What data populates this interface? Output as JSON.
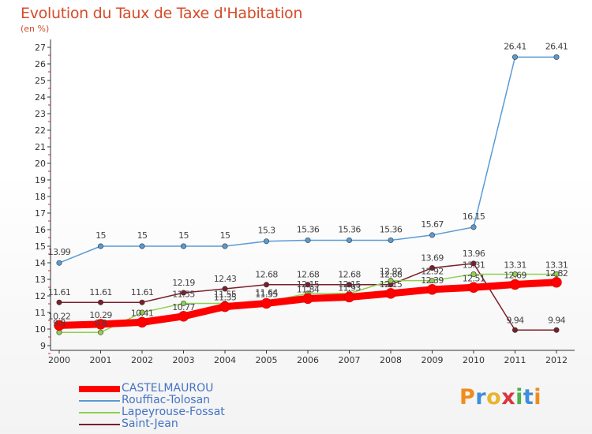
{
  "header": {
    "title": "Evolution du Taux de Taxe d'Habitation",
    "subtitle": "(en %)"
  },
  "logo": {
    "text": "Proxiti",
    "colors": [
      "#ef8c1e",
      "#3f8fd8",
      "#e8b52c",
      "#d9363e",
      "#4ab34a",
      "#3f8fd8",
      "#ef8c1e"
    ]
  },
  "chart_data": {
    "type": "line",
    "title": "Evolution du Taux de Taxe d'Habitation",
    "ylabel": "(en %)",
    "x": [
      "2000",
      "2001",
      "2002",
      "2003",
      "2004",
      "2005",
      "2006",
      "2007",
      "2008",
      "2009",
      "2010",
      "2011",
      "2012"
    ],
    "ylim": [
      9,
      27
    ],
    "yticks": [
      9,
      10,
      11,
      12,
      13,
      14,
      15,
      16,
      17,
      18,
      19,
      20,
      21,
      22,
      23,
      24,
      25,
      26,
      27
    ],
    "grid": false,
    "legend_position": "bottom-left",
    "series": [
      {
        "name": "CASTELMAUROU",
        "color": "#ff0000",
        "values": [
          10.22,
          10.29,
          10.41,
          10.77,
          11.35,
          11.55,
          11.84,
          11.93,
          12.15,
          12.39,
          12.51,
          12.69,
          12.82
        ],
        "labels": [
          "10.22",
          "10.29",
          "10.41",
          "10.77",
          "11.35",
          "11.55",
          "11.84",
          "11.93",
          "12.15",
          "12.39",
          "12.51",
          "12.69",
          "12.82"
        ]
      },
      {
        "name": "Rouffiac-Tolosan",
        "color": "#5b9bd5",
        "values": [
          13.99,
          15,
          15,
          15,
          15,
          15.3,
          15.36,
          15.36,
          15.36,
          15.67,
          16.15,
          26.41,
          26.41
        ],
        "labels": [
          "13.99",
          "15",
          "15",
          "15",
          "15",
          "15.3",
          "15.36",
          "15.36",
          "15.36",
          "15.67",
          "16.15",
          "26.41",
          "26.41"
        ]
      },
      {
        "name": "Lapeyrouse-Fossat",
        "color": "#8fd14f",
        "values": [
          9.8,
          9.8,
          11,
          11.55,
          11.55,
          11.64,
          12.15,
          12.15,
          12.92,
          12.92,
          13.31,
          13.31,
          13.31
        ],
        "labels": [
          "9.8",
          "9.8",
          "",
          "11.55",
          "11.55",
          "11.64",
          "12.15",
          "12.15",
          "12.92",
          "12.92",
          "13.31",
          "13.31",
          "13.31"
        ]
      },
      {
        "name": "Saint-Jean",
        "color": "#7a1f2b",
        "values": [
          11.61,
          11.61,
          11.61,
          12.19,
          12.43,
          12.68,
          12.68,
          12.68,
          12.68,
          13.69,
          13.96,
          9.94,
          9.94
        ],
        "labels": [
          "11.61",
          "11.61",
          "11.61",
          "12.19",
          "12.43",
          "12.68",
          "12.68",
          "12.68",
          "12.68",
          "13.69",
          "13.96",
          "9.94",
          "9.94"
        ]
      }
    ]
  }
}
